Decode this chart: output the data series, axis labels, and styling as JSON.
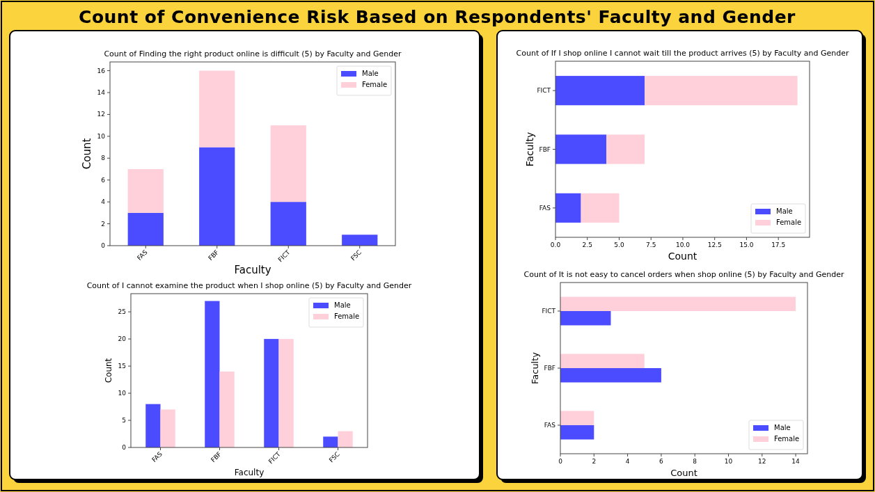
{
  "chart_data": [
    {
      "type": "other",
      "title": "Count of Convenience Risk Based on Respondents' Faculty and Gender"
    },
    {
      "type": "bar",
      "title": "Count of Finding the right product online is difficult (5) by Faculty and Gender",
      "xlabel": "Faculty",
      "ylabel": "Count",
      "categories": [
        "FAS",
        "FBF",
        "FICT",
        "FSC"
      ],
      "stacked": true,
      "ylim": [
        0,
        16.8
      ],
      "yticks": [
        0,
        2,
        4,
        6,
        8,
        10,
        12,
        14,
        16
      ],
      "legend": "top right",
      "series": [
        {
          "name": "Male",
          "color": "#4b4bff",
          "values": [
            3,
            9,
            4,
            1
          ]
        },
        {
          "name": "Female",
          "color": "#ffd0da",
          "values": [
            4,
            7,
            7,
            0
          ]
        }
      ]
    },
    {
      "type": "bar",
      "title": "Count of I cannot examine the product when I shop online (5) by Faculty and Gender",
      "xlabel": "Faculty",
      "ylabel": "Count",
      "categories": [
        "FAS",
        "FBF",
        "FICT",
        "FSC"
      ],
      "ylim": [
        0,
        28.35
      ],
      "yticks": [
        0,
        5,
        10,
        15,
        20,
        25
      ],
      "legend": "top right",
      "series": [
        {
          "name": "Male",
          "color": "#4b4bff",
          "values": [
            8,
            27,
            20,
            2
          ]
        },
        {
          "name": "Female",
          "color": "#ffd0da",
          "values": [
            7,
            14,
            20,
            3
          ]
        }
      ]
    },
    {
      "type": "bar",
      "orientation": "horizontal",
      "stacked": true,
      "title": "Count of If I shop online I cannot wait till the product arrives (5) by Faculty and Gender",
      "xlabel": "Count",
      "ylabel": "Faculty",
      "categories": [
        "FICT",
        "FBF",
        "FAS"
      ],
      "xlim": [
        0,
        19.95
      ],
      "xticks": [
        {
          "value": 0,
          "label": "0.0"
        },
        2.5,
        {
          "value": 5,
          "label": "5.0"
        },
        7.5,
        {
          "value": 10,
          "label": "10.0"
        },
        12.5,
        {
          "value": 15,
          "label": "15.0"
        },
        17.5
      ],
      "legend": "bottom right",
      "series": [
        {
          "name": "Male",
          "color": "#4b4bff",
          "values": [
            7,
            4,
            2
          ]
        },
        {
          "name": "Female",
          "color": "#ffd0da",
          "values": [
            12,
            3,
            3
          ]
        }
      ]
    },
    {
      "type": "bar",
      "orientation": "horizontal",
      "title": "Count of It is not easy to cancel orders when shop online (5) by Faculty and Gender",
      "xlabel": "Count",
      "ylabel": "Faculty",
      "categories": [
        "FICT",
        "FBF",
        "FAS"
      ],
      "xlim": [
        0,
        14.7
      ],
      "xticks": [
        0,
        2,
        4,
        6,
        8,
        10,
        12,
        14
      ],
      "legend": "bottom right",
      "series": [
        {
          "name": "Male",
          "color": "#4b4bff",
          "values": [
            3,
            6,
            2
          ]
        },
        {
          "name": "Female",
          "color": "#ffd0da",
          "values": [
            14,
            5,
            2
          ]
        }
      ]
    }
  ]
}
